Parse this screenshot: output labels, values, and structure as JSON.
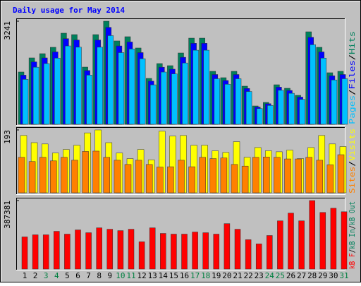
{
  "chart_data": [
    {
      "type": "bar",
      "title": "Daily usage for May 2014",
      "separator": "/",
      "ylim": [
        0,
        3241
      ],
      "yticks": [
        3241
      ],
      "series": [
        {
          "name": "Hits",
          "color": "#00805c",
          "values": [
            1643,
            2087,
            2220,
            2420,
            2864,
            2819,
            1798,
            2819,
            3241,
            2620,
            2753,
            2398,
            1443,
            1909,
            1843,
            2242,
            2708,
            2708,
            1665,
            1465,
            1665,
            1199,
            577,
            688,
            1243,
            1132,
            910,
            2908,
            2420,
            1621,
            1665
          ]
        },
        {
          "name": "Files",
          "color": "#0000ff",
          "values": [
            1545,
            1962,
            2087,
            2275,
            2692,
            2650,
            1690,
            2650,
            3047,
            2463,
            2588,
            2254,
            1356,
            1794,
            1732,
            2107,
            2546,
            2546,
            1565,
            1377,
            1565,
            1127,
            542,
            647,
            1168,
            1064,
            855,
            2734,
            2275,
            1524,
            1565
          ]
        },
        {
          "name": "Pages",
          "color": "#00c0ff",
          "values": [
            1413,
            1795,
            1909,
            2081,
            2463,
            2424,
            1546,
            2424,
            2787,
            2253,
            2368,
            2062,
            1241,
            1642,
            1585,
            1928,
            2329,
            2329,
            1432,
            1260,
            1432,
            1031,
            496,
            592,
            1069,
            974,
            783,
            2501,
            2081,
            1394,
            1432
          ]
        }
      ]
    },
    {
      "type": "bar",
      "separator": "/",
      "ylim": [
        0,
        193
      ],
      "yticks": [
        193
      ],
      "series": [
        {
          "name": "Visits",
          "color": "#ffff00",
          "values": [
            176,
            154,
            150,
            122,
            133,
            146,
            184,
            193,
            154,
            122,
            105,
            133,
            101,
            189,
            174,
            176,
            146,
            146,
            129,
            124,
            157,
            109,
            139,
            129,
            126,
            131,
            105,
            139,
            176,
            150,
            142
          ]
        },
        {
          "name": "Sites",
          "color": "#ff8000",
          "values": [
            109,
            96,
            109,
            98,
            109,
            100,
            127,
            128,
            109,
            100,
            87,
            100,
            87,
            79,
            80,
            100,
            80,
            109,
            105,
            107,
            87,
            82,
            109,
            110,
            109,
            104,
            104,
            109,
            100,
            86,
            117
          ]
        }
      ]
    },
    {
      "type": "bar",
      "separator": "/",
      "ylim": [
        0,
        387381
      ],
      "yticks": [
        387381
      ],
      "categories": [
        "1",
        "2",
        "3",
        "4",
        "5",
        "6",
        "7",
        "8",
        "9",
        "10",
        "11",
        "12",
        "13",
        "14",
        "15",
        "16",
        "17",
        "18",
        "19",
        "20",
        "21",
        "22",
        "23",
        "24",
        "25",
        "26",
        "27",
        "28",
        "29",
        "30",
        "31"
      ],
      "category_colors": [
        "#000000",
        "#000000",
        "#008040",
        "#008040",
        "#000000",
        "#000000",
        "#000000",
        "#000000",
        "#000000",
        "#008040",
        "#008040",
        "#000000",
        "#000000",
        "#000000",
        "#000000",
        "#000000",
        "#008040",
        "#008040",
        "#000000",
        "#000000",
        "#000000",
        "#000000",
        "#000000",
        "#008040",
        "#008040",
        "#000000",
        "#000000",
        "#000000",
        "#000000",
        "#000000",
        "#008040"
      ],
      "series": [
        {
          "name": "kB F",
          "color": "#ff0000",
          "values": [
            181838,
            193697,
            193697,
            213462,
            197650,
            221368,
            205556,
            233227,
            225321,
            217415,
            225321,
            154167,
            233227,
            201603,
            197650,
            197650,
            209509,
            205556,
            197650,
            256945,
            225321,
            166026,
            142308,
            189744,
            272757,
            316240,
            272757,
            387381,
            320193,
            343911,
            324146
          ]
        }
      ],
      "legend_extra": [
        {
          "name": "kB In",
          "color": "#00805c"
        },
        {
          "name": "kB Out",
          "color": "#00805c"
        }
      ]
    }
  ]
}
